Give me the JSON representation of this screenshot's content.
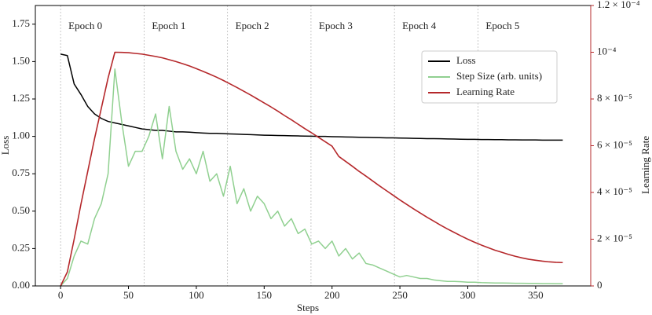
{
  "chart_data": {
    "type": "line",
    "x_label": "Steps",
    "y_label": "Loss",
    "y2_label": "Learning Rate",
    "x": [
      0,
      5,
      10,
      15,
      20,
      25,
      30,
      35,
      40,
      45,
      50,
      55,
      60,
      65,
      70,
      75,
      80,
      85,
      90,
      95,
      100,
      105,
      110,
      115,
      120,
      125,
      130,
      135,
      140,
      145,
      150,
      155,
      160,
      165,
      170,
      175,
      180,
      185,
      190,
      195,
      200,
      205,
      210,
      215,
      220,
      225,
      230,
      235,
      240,
      245,
      250,
      255,
      260,
      265,
      270,
      275,
      280,
      285,
      290,
      295,
      300,
      305,
      310,
      315,
      320,
      325,
      330,
      335,
      340,
      345,
      350,
      355,
      360,
      365,
      370
    ],
    "series": [
      {
        "name": "Loss",
        "color": "#000000",
        "axis": "y",
        "values": [
          1.55,
          1.54,
          1.35,
          1.28,
          1.2,
          1.15,
          1.12,
          1.1,
          1.09,
          1.08,
          1.07,
          1.06,
          1.05,
          1.045,
          1.04,
          1.04,
          1.035,
          1.03,
          1.03,
          1.028,
          1.025,
          1.022,
          1.02,
          1.02,
          1.018,
          1.016,
          1.015,
          1.013,
          1.012,
          1.01,
          1.008,
          1.007,
          1.006,
          1.005,
          1.004,
          1.003,
          1.002,
          1.001,
          1.0,
          1.0,
          0.998,
          0.997,
          0.996,
          0.995,
          0.994,
          0.993,
          0.992,
          0.991,
          0.99,
          0.99,
          0.989,
          0.988,
          0.987,
          0.986,
          0.985,
          0.985,
          0.984,
          0.983,
          0.982,
          0.981,
          0.98,
          0.98,
          0.979,
          0.979,
          0.978,
          0.978,
          0.977,
          0.977,
          0.976,
          0.976,
          0.976,
          0.975,
          0.975,
          0.975,
          0.975
        ]
      },
      {
        "name": "Step Size (arb. units)",
        "color": "#90d090",
        "axis": "y",
        "values": [
          0,
          0.05,
          0.2,
          0.3,
          0.28,
          0.45,
          0.55,
          0.75,
          1.45,
          1.1,
          0.8,
          0.9,
          0.9,
          1.0,
          1.15,
          0.85,
          1.2,
          0.9,
          0.78,
          0.85,
          0.75,
          0.9,
          0.7,
          0.75,
          0.6,
          0.8,
          0.55,
          0.65,
          0.5,
          0.6,
          0.55,
          0.45,
          0.5,
          0.4,
          0.45,
          0.35,
          0.38,
          0.28,
          0.3,
          0.25,
          0.3,
          0.2,
          0.25,
          0.18,
          0.22,
          0.15,
          0.14,
          0.12,
          0.1,
          0.08,
          0.06,
          0.07,
          0.06,
          0.05,
          0.05,
          0.04,
          0.035,
          0.03,
          0.03,
          0.028,
          0.025,
          0.025,
          0.022,
          0.021,
          0.02,
          0.02,
          0.019,
          0.018,
          0.018,
          0.017,
          0.017,
          0.016,
          0.016,
          0.015,
          0.015
        ]
      },
      {
        "name": "Learning Rate",
        "color": "#b5282b",
        "axis": "y2",
        "values": [
          0,
          6e-06,
          2e-05,
          3.5e-05,
          4.9e-05,
          6.3e-05,
          7.6e-05,
          8.9e-05,
          0.0001,
          9.995e-05,
          9.98e-05,
          9.95e-05,
          9.92e-05,
          9.87e-05,
          9.82e-05,
          9.76e-05,
          9.68e-05,
          9.6e-05,
          9.51e-05,
          9.41e-05,
          9.3e-05,
          9.18e-05,
          9.06e-05,
          8.93e-05,
          8.79e-05,
          8.64e-05,
          8.49e-05,
          8.33e-05,
          8.17e-05,
          8e-05,
          7.83e-05,
          7.66e-05,
          7.48e-05,
          7.29e-05,
          7.11e-05,
          6.92e-05,
          6.73e-05,
          6.55e-05,
          6.36e-05,
          6.17e-05,
          5.98e-05,
          5.54e-05,
          5.33e-05,
          5.12e-05,
          4.9e-05,
          4.7e-05,
          4.49e-05,
          4.28e-05,
          4.08e-05,
          3.88e-05,
          3.68e-05,
          3.49e-05,
          3.3e-05,
          3.12e-05,
          2.94e-05,
          2.77e-05,
          2.6e-05,
          2.44e-05,
          2.29e-05,
          2.14e-05,
          2e-05,
          1.87e-05,
          1.75e-05,
          1.64e-05,
          1.53e-05,
          1.44e-05,
          1.35e-05,
          1.27e-05,
          1.2e-05,
          1.14e-05,
          1.1e-05,
          1.06e-05,
          1.03e-05,
          1.01e-05,
          1e-05
        ]
      }
    ],
    "annotations": [
      {
        "text": "Epoch 0",
        "x": 0
      },
      {
        "text": "Epoch 1",
        "x": 61.5
      },
      {
        "text": "Epoch 2",
        "x": 123
      },
      {
        "text": "Epoch 3",
        "x": 184.5
      },
      {
        "text": "Epoch 4",
        "x": 246
      },
      {
        "text": "Epoch 5",
        "x": 307.5
      }
    ],
    "xlim": [
      -18.6,
      390.6
    ],
    "xticks": [
      0,
      50,
      100,
      150,
      200,
      250,
      300,
      350
    ],
    "ylim": [
      0,
      1.875
    ],
    "yticks": [
      {
        "value": 0,
        "label": "0.00"
      },
      {
        "value": 0.25,
        "label": "0.25"
      },
      {
        "value": 0.5,
        "label": "0.50"
      },
      {
        "value": 0.75,
        "label": "0.75"
      },
      {
        "value": 1,
        "label": "1.00"
      },
      {
        "value": 1.25,
        "label": "1.25"
      },
      {
        "value": 1.5,
        "label": "1.50"
      },
      {
        "value": 1.75,
        "label": "1.75"
      }
    ],
    "y2lim": [
      0,
      0.00012
    ],
    "y2ticks": [
      0,
      {
        "value": 2e-05,
        "label": "2 × 10⁻⁵"
      },
      {
        "value": 4e-05,
        "label": "4 × 10⁻⁵"
      },
      {
        "value": 6e-05,
        "label": "6 × 10⁻⁵"
      },
      {
        "value": 8e-05,
        "label": "8 × 10⁻⁵"
      },
      {
        "value": 0.0001,
        "label": "10⁻⁴"
      },
      {
        "value": 0.00012,
        "label": "1.2 × 10⁻⁴"
      }
    ],
    "y2_color": "#b5282b",
    "legend": "upper right"
  }
}
